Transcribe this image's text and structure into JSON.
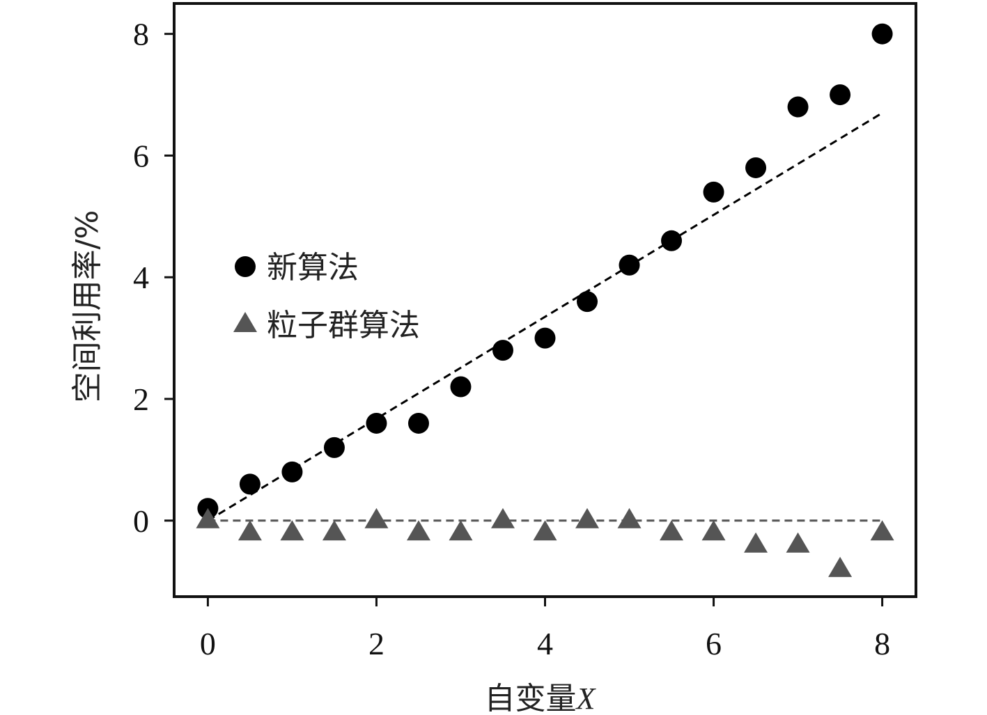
{
  "chart_data": {
    "type": "scatter",
    "xlabel": "自变量",
    "xlabel_var": "X",
    "ylabel": "空间利用率/%",
    "xlim": [
      -0.4,
      8.4
    ],
    "ylim": [
      -1.25,
      8.5
    ],
    "xticks": [
      0,
      2,
      4,
      6,
      8
    ],
    "yticks": [
      0,
      2,
      4,
      6,
      8
    ],
    "grid": false,
    "legend_position": "center-left",
    "series": [
      {
        "name": "新算法",
        "marker": "circle",
        "color": "#000000",
        "x": [
          0,
          0.5,
          1,
          1.5,
          2,
          2.5,
          3,
          3.5,
          4,
          4.5,
          5,
          5.5,
          6,
          6.5,
          7,
          7.5,
          8
        ],
        "y": [
          0.2,
          0.6,
          0.8,
          1.2,
          1.6,
          1.6,
          2.2,
          2.8,
          3.0,
          3.6,
          4.2,
          4.6,
          5.4,
          5.8,
          6.8,
          7.0,
          8.0
        ]
      },
      {
        "name": "粒子群算法",
        "marker": "triangle",
        "color": "#555555",
        "x": [
          0,
          0.5,
          1,
          1.5,
          2,
          2.5,
          3,
          3.5,
          4,
          4.5,
          5,
          5.5,
          6,
          6.5,
          7,
          7.5,
          8
        ],
        "y": [
          0,
          -0.2,
          -0.2,
          -0.2,
          0,
          -0.2,
          -0.2,
          0,
          -0.2,
          0,
          0,
          -0.2,
          -0.2,
          -0.4,
          -0.4,
          -0.8,
          -0.2
        ]
      }
    ],
    "trend_lines": [
      {
        "series": "新算法",
        "x": [
          0,
          8
        ],
        "y": [
          0,
          6.7
        ],
        "color": "#000000",
        "style": "dashed"
      },
      {
        "series": "粒子群算法",
        "x": [
          0,
          8
        ],
        "y": [
          0,
          0
        ],
        "color": "#555555",
        "style": "dashed"
      }
    ]
  }
}
